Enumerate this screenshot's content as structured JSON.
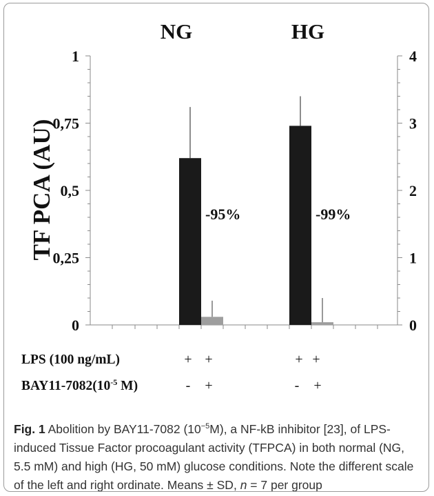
{
  "figure": {
    "label": "Fig. 1",
    "caption_parts": {
      "before_sup": "Abolition by BAY11-7082 (10",
      "sup": "−5",
      "after_sup": "M), a NF-kB inhibitor [23], of LPS-induced Tissue Factor procoagulant activity (TFPCA) in both normal (NG, 5.5 mM) and high (HG, 50 mM) glucose conditions. Note the different scale of the left and right ordinate. Means ± SD,",
      "n_italic": "n",
      "tail": " = 7 per group"
    }
  },
  "chart_data": {
    "type": "bar",
    "ylabel": "TF PCA (AU)",
    "ylim": [
      0,
      1
    ],
    "y2lim": [
      0,
      4
    ],
    "y_ticks": [
      "0",
      "0,25",
      "0,5",
      "0,75",
      "1"
    ],
    "y2_ticks": [
      "0",
      "1",
      "2",
      "3",
      "4"
    ],
    "group_labels": [
      "NG",
      "HG"
    ],
    "bars": [
      {
        "group": "NG",
        "treatment": "LPS",
        "value": 0.62,
        "sd": 0.19,
        "color": "#1a1a1a"
      },
      {
        "group": "NG",
        "treatment": "LPS + BAY11-7082",
        "value": 0.03,
        "sd": 0.06,
        "color": "#9e9e9e"
      },
      {
        "group": "HG",
        "treatment": "LPS",
        "value": 0.74,
        "sd": 0.11,
        "color": "#1a1a1a"
      },
      {
        "group": "HG",
        "treatment": "LPS + BAY11-7082",
        "value": 0.01,
        "sd": 0.09,
        "color": "#9e9e9e"
      }
    ],
    "annotations": [
      "-95%",
      "-99%"
    ],
    "rows": [
      {
        "label": "LPS (100 ng/mL)",
        "marks": [
          "+",
          "+",
          "+",
          "+"
        ]
      },
      {
        "label_main": "BAY11-7082(10",
        "label_sup": "-5",
        "label_tail": " M)",
        "marks": [
          "-",
          "+",
          "-",
          "+"
        ]
      }
    ],
    "grid": false
  }
}
